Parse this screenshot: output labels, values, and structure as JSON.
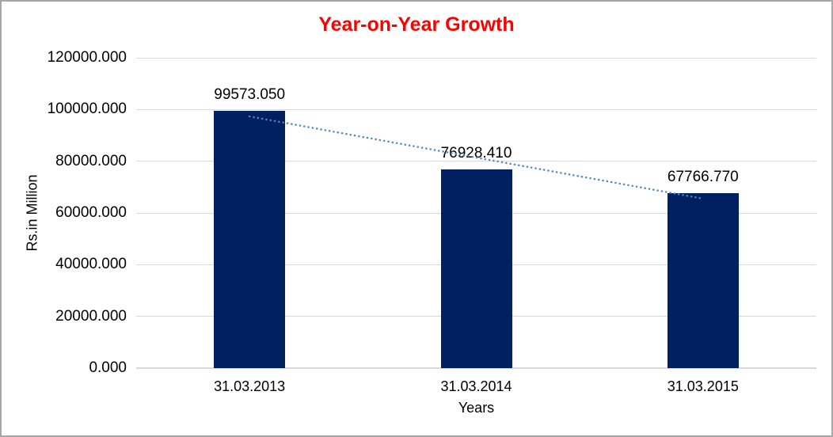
{
  "chart_data": {
    "type": "bar",
    "title": "Year-on-Year Growth",
    "xlabel": "Years",
    "ylabel": "Rs.in Million",
    "categories": [
      "31.03.2013",
      "31.03.2014",
      "31.03.2015"
    ],
    "values": [
      99573.05,
      76928.41,
      67766.77
    ],
    "value_labels": [
      "99573.050",
      "76928.410",
      "67766.770"
    ],
    "ylim": [
      0,
      120000
    ],
    "ytick_values": [
      0,
      20000,
      40000,
      60000,
      80000,
      100000,
      120000
    ],
    "ytick_labels": [
      "0.000",
      "20000.000",
      "40000.000",
      "60000.000",
      "80000.000",
      "100000.000",
      "120000.000"
    ],
    "grid": true,
    "legend": "none",
    "trendline": {
      "type": "linear",
      "style": "dotted"
    }
  },
  "colors": {
    "title": "#FF0000",
    "bar": "#002060",
    "trendline": "#4E86C6",
    "gridline": "#D9D9D9",
    "text": "#000000",
    "border": "#A6A6A6",
    "background": "#FFFFFF"
  }
}
